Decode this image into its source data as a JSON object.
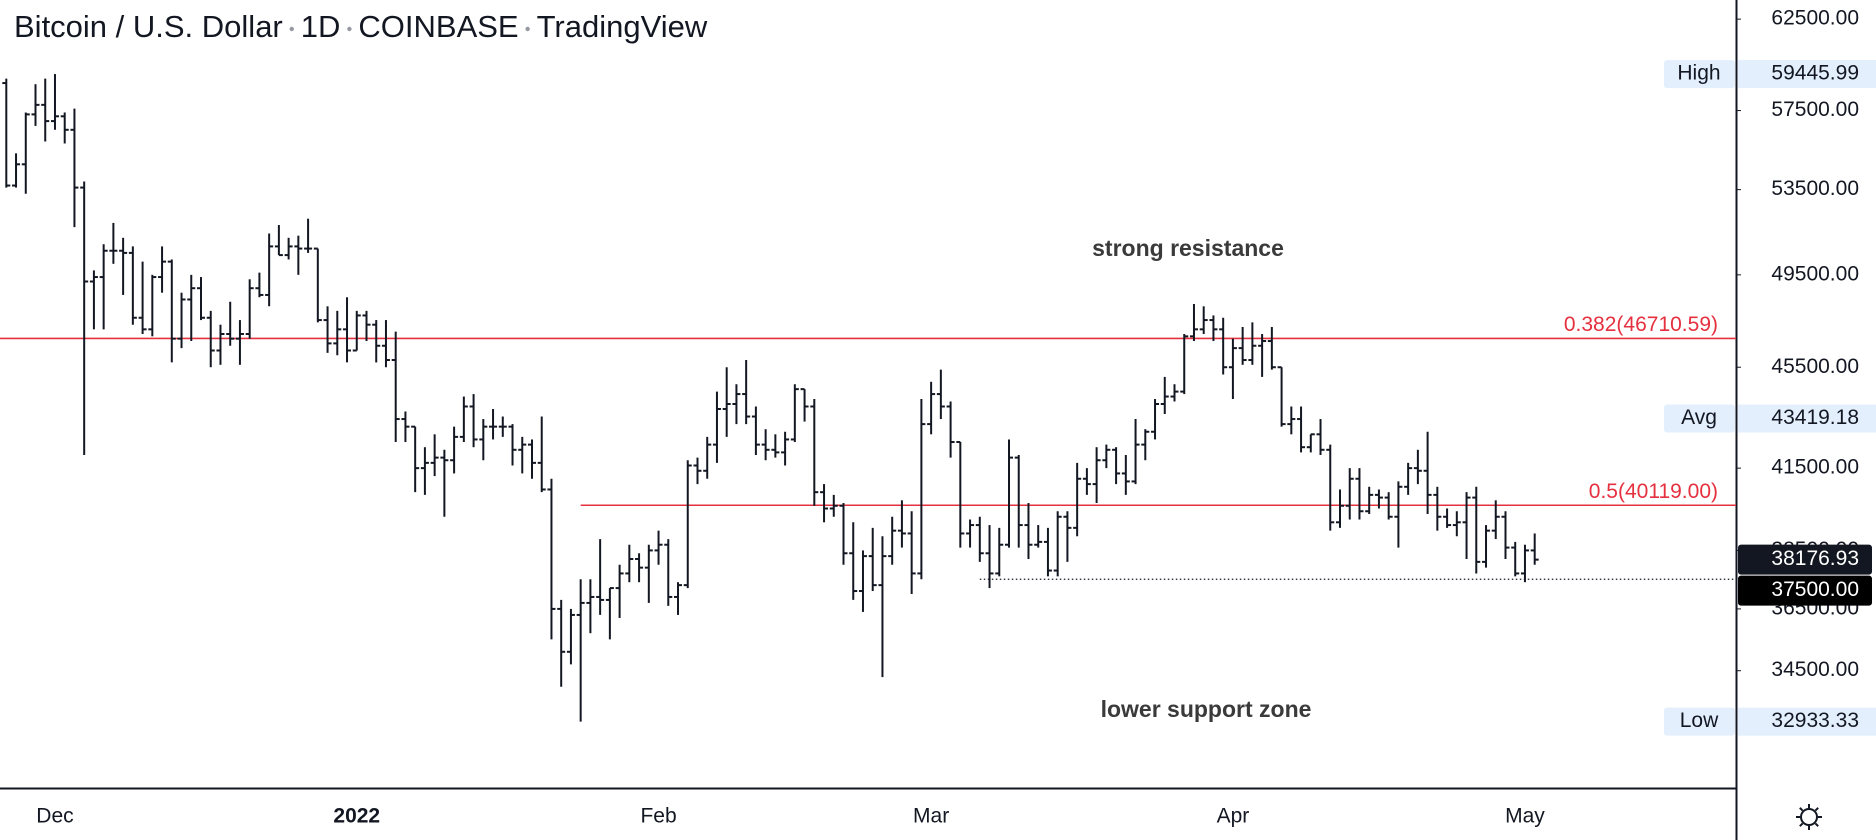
{
  "chart_data": {
    "type": "ohlc",
    "title": "Bitcoin / U.S. Dollar",
    "interval": "1D",
    "exchange": "COINBASE",
    "source": "TradingView",
    "log_scale": true,
    "color": "#131722",
    "level_color": "#e5303f",
    "ylim": [
      31000,
      63600
    ],
    "yticks": [
      {
        "value": 62500,
        "label": "62500.00"
      },
      {
        "value": 57500,
        "label": "57500.00"
      },
      {
        "value": 53500,
        "label": "53500.00"
      },
      {
        "value": 49500,
        "label": "49500.00"
      },
      {
        "value": 45500,
        "label": "45500.00"
      },
      {
        "value": 41500,
        "label": "41500.00"
      },
      {
        "value": 38500,
        "label": "38500.00"
      },
      {
        "value": 36500,
        "label": "36500.00"
      },
      {
        "value": 34500,
        "label": "34500.00"
      }
    ],
    "categories": [
      null,
      null,
      null,
      null,
      null,
      "Dec",
      null,
      null,
      null,
      null,
      null,
      null,
      null,
      null,
      null,
      null,
      null,
      null,
      null,
      null,
      null,
      null,
      null,
      null,
      null,
      null,
      null,
      null,
      null,
      null,
      null,
      null,
      null,
      null,
      null,
      null,
      "2022",
      null,
      null,
      null,
      null,
      null,
      null,
      null,
      null,
      null,
      null,
      null,
      null,
      null,
      null,
      null,
      null,
      null,
      null,
      null,
      null,
      null,
      null,
      null,
      null,
      null,
      null,
      null,
      null,
      null,
      null,
      "Feb",
      null,
      null,
      null,
      null,
      null,
      null,
      null,
      null,
      null,
      null,
      null,
      null,
      null,
      null,
      null,
      null,
      null,
      null,
      null,
      null,
      null,
      null,
      null,
      null,
      null,
      null,
      null,
      "Mar",
      null,
      null,
      null,
      null,
      null,
      null,
      null,
      null,
      null,
      null,
      null,
      null,
      null,
      null,
      null,
      null,
      null,
      null,
      null,
      null,
      null,
      null,
      null,
      null,
      null,
      null,
      null,
      null,
      null,
      null,
      "Apr",
      null,
      null,
      null,
      null,
      null,
      null,
      null,
      null,
      null,
      null,
      null,
      null,
      null,
      null,
      null,
      null,
      null,
      null,
      null,
      null,
      null,
      null,
      null,
      null,
      null,
      null,
      null,
      null,
      null,
      "May",
      null
    ],
    "ohlc": {
      "open": [
        58960,
        53700,
        54750,
        57300,
        57800,
        56950,
        57200,
        56500,
        53600,
        49200,
        49400,
        50600,
        50600,
        50500,
        47600,
        47100,
        49400,
        50100,
        46700,
        48400,
        48900,
        47600,
        46200,
        46900,
        46700,
        46900,
        48900,
        48600,
        50800,
        50400,
        50800,
        50700,
        50700,
        47500,
        46500,
        47100,
        46200,
        47700,
        47300,
        46400,
        45800,
        43400,
        43100,
        41500,
        41700,
        41900,
        41800,
        42700,
        43900,
        42600,
        43100,
        43100,
        43100,
        42200,
        42400,
        41700,
        40700,
        36500,
        35100,
        36300,
        36700,
        36900,
        36800,
        37200,
        37700,
        38200,
        37900,
        38500,
        38700,
        36900,
        37300,
        41600,
        41400,
        42400,
        43800,
        44000,
        44400,
        43500,
        42400,
        42200,
        42100,
        42600,
        44600,
        43900,
        40600,
        40000,
        40100,
        38400,
        37100,
        38300,
        37300,
        38300,
        39200,
        39100,
        37700,
        43200,
        44400,
        43900,
        42500,
        39100,
        39400,
        38400,
        37700,
        38700,
        41900,
        39400,
        38700,
        38800,
        37800,
        39700,
        39300,
        41100,
        40900,
        41800,
        42200,
        41300,
        41000,
        42400,
        42900,
        44000,
        44300,
        44500,
        46800,
        47100,
        47500,
        47100,
        45500,
        46300,
        45800,
        46400,
        46600,
        45500,
        43200,
        43400,
        42300,
        42800,
        42200,
        39500,
        40100,
        41100,
        39900,
        40500,
        40400,
        39700,
        40800,
        41500,
        41400,
        40500,
        39700,
        39400,
        39500,
        40400,
        38100,
        39200,
        39700,
        38600,
        37700,
        38500
      ],
      "high": [
        59200,
        55300,
        57400,
        58900,
        59200,
        59445.99,
        57400,
        57600,
        53900,
        49700,
        50900,
        51900,
        51200,
        50800,
        50100,
        49500,
        50800,
        50200,
        48700,
        49500,
        49400,
        47900,
        47300,
        48300,
        47500,
        49300,
        49600,
        51400,
        51800,
        51200,
        51300,
        52100,
        50700,
        48100,
        47900,
        48500,
        47900,
        47900,
        47500,
        47500,
        47000,
        43700,
        43100,
        42300,
        42800,
        42200,
        43100,
        44300,
        44400,
        43400,
        43800,
        43500,
        43200,
        42700,
        42600,
        43500,
        41100,
        36800,
        36500,
        37500,
        37500,
        38900,
        37200,
        38000,
        38700,
        38400,
        38700,
        39200,
        38900,
        37400,
        41800,
        41900,
        42700,
        44500,
        45500,
        44800,
        45800,
        43900,
        43000,
        42800,
        42900,
        44800,
        44600,
        44200,
        40900,
        40500,
        40200,
        39500,
        38500,
        39300,
        39000,
        39700,
        40300,
        39900,
        44200,
        44900,
        45400,
        44100,
        42500,
        39600,
        39700,
        39400,
        39300,
        42600,
        42000,
        40200,
        39400,
        39300,
        39900,
        39900,
        41700,
        41500,
        42300,
        42400,
        42300,
        42000,
        43400,
        43000,
        44200,
        45100,
        44800,
        46900,
        48200,
        48100,
        47700,
        47600,
        46700,
        47200,
        47400,
        46900,
        47200,
        45500,
        43900,
        43900,
        42800,
        43400,
        42400,
        40700,
        41500,
        41500,
        40800,
        40700,
        40600,
        41000,
        41700,
        42200,
        42900,
        40800,
        40000,
        39900,
        40600,
        40800,
        39400,
        40300,
        39900,
        38800,
        38700,
        39100
      ],
      "low": [
        53600,
        53600,
        53300,
        56700,
        55900,
        56500,
        55800,
        51700,
        42000,
        47100,
        47100,
        50000,
        48600,
        47300,
        46900,
        46800,
        48700,
        45700,
        46300,
        46600,
        47500,
        45500,
        45600,
        46400,
        45600,
        46700,
        48500,
        48100,
        50400,
        50200,
        49500,
        50500,
        47400,
        46100,
        46000,
        45700,
        46200,
        46600,
        45700,
        45500,
        42500,
        42500,
        40600,
        40500,
        41200,
        39700,
        41300,
        42500,
        42300,
        41800,
        42600,
        42700,
        41600,
        41300,
        41100,
        40600,
        35500,
        34000,
        34700,
        32933.33,
        35700,
        36300,
        35500,
        36200,
        37400,
        37400,
        36700,
        38000,
        36600,
        36300,
        37200,
        40900,
        41100,
        41700,
        42700,
        43200,
        43200,
        42000,
        41800,
        41900,
        41600,
        42500,
        43300,
        40100,
        39500,
        39700,
        38000,
        36800,
        36400,
        37100,
        34300,
        38000,
        38600,
        37000,
        37500,
        42800,
        43400,
        41900,
        38600,
        38600,
        38100,
        37200,
        37600,
        38600,
        38600,
        38200,
        38600,
        37600,
        37600,
        38100,
        39000,
        40500,
        40200,
        41500,
        40900,
        40500,
        40900,
        41800,
        42600,
        43600,
        44100,
        44400,
        46600,
        46900,
        46600,
        45200,
        44200,
        45600,
        45600,
        45100,
        45400,
        43100,
        42800,
        42100,
        42100,
        42000,
        39200,
        39300,
        39600,
        39600,
        39800,
        40000,
        39600,
        38600,
        40500,
        40900,
        39800,
        39200,
        39300,
        39000,
        38200,
        37700,
        37900,
        38900,
        38200,
        37600,
        37400,
        38000
      ],
      "close": [
        53700,
        54750,
        57300,
        57800,
        56950,
        57200,
        56500,
        53600,
        49200,
        49400,
        50600,
        50600,
        50500,
        47600,
        47100,
        49400,
        50100,
        46700,
        48400,
        48900,
        47600,
        46200,
        46900,
        46700,
        46900,
        48900,
        48600,
        50800,
        50400,
        50800,
        50700,
        50700,
        47500,
        46500,
        47100,
        46200,
        47700,
        47300,
        46400,
        45800,
        43400,
        43100,
        41500,
        41700,
        41900,
        41800,
        42700,
        43900,
        42600,
        43100,
        43100,
        43100,
        42200,
        42400,
        41700,
        40700,
        36500,
        35100,
        36300,
        36700,
        36900,
        36800,
        37200,
        37700,
        38200,
        37900,
        38500,
        38700,
        36900,
        37300,
        41600,
        41400,
        42400,
        43800,
        44000,
        44400,
        43500,
        42400,
        42200,
        42100,
        42600,
        44600,
        43900,
        40600,
        40000,
        40100,
        38400,
        37100,
        38300,
        37300,
        38300,
        39200,
        39100,
        37700,
        43200,
        44400,
        43900,
        42500,
        39100,
        39400,
        38400,
        37700,
        38700,
        41900,
        39400,
        38700,
        38800,
        37800,
        39700,
        39300,
        41100,
        40900,
        41800,
        42200,
        41300,
        41000,
        42400,
        42900,
        44000,
        44300,
        44500,
        46800,
        47100,
        47500,
        47100,
        45500,
        46300,
        45800,
        46400,
        46600,
        45500,
        43200,
        43400,
        42300,
        42800,
        42200,
        39500,
        40100,
        41100,
        39900,
        40500,
        40400,
        39700,
        40800,
        41500,
        41400,
        40500,
        39700,
        39400,
        39500,
        40400,
        38100,
        39200,
        39700,
        38600,
        37700,
        38500,
        38176.93
      ]
    },
    "levels": [
      {
        "label": "0.382(46710.59)",
        "value": 46710.59
      },
      {
        "label": "0.5(40119.00)",
        "value": 40119
      }
    ],
    "support": {
      "label": "37500.00",
      "value": 37500
    },
    "stats": [
      {
        "label": "High",
        "value": 59445.99
      },
      {
        "label": "Avg",
        "value": 43419.18
      },
      {
        "label": "Low",
        "value": 32933.33
      }
    ],
    "annotations": [
      "strong resistance",
      "lower support zone"
    ]
  }
}
